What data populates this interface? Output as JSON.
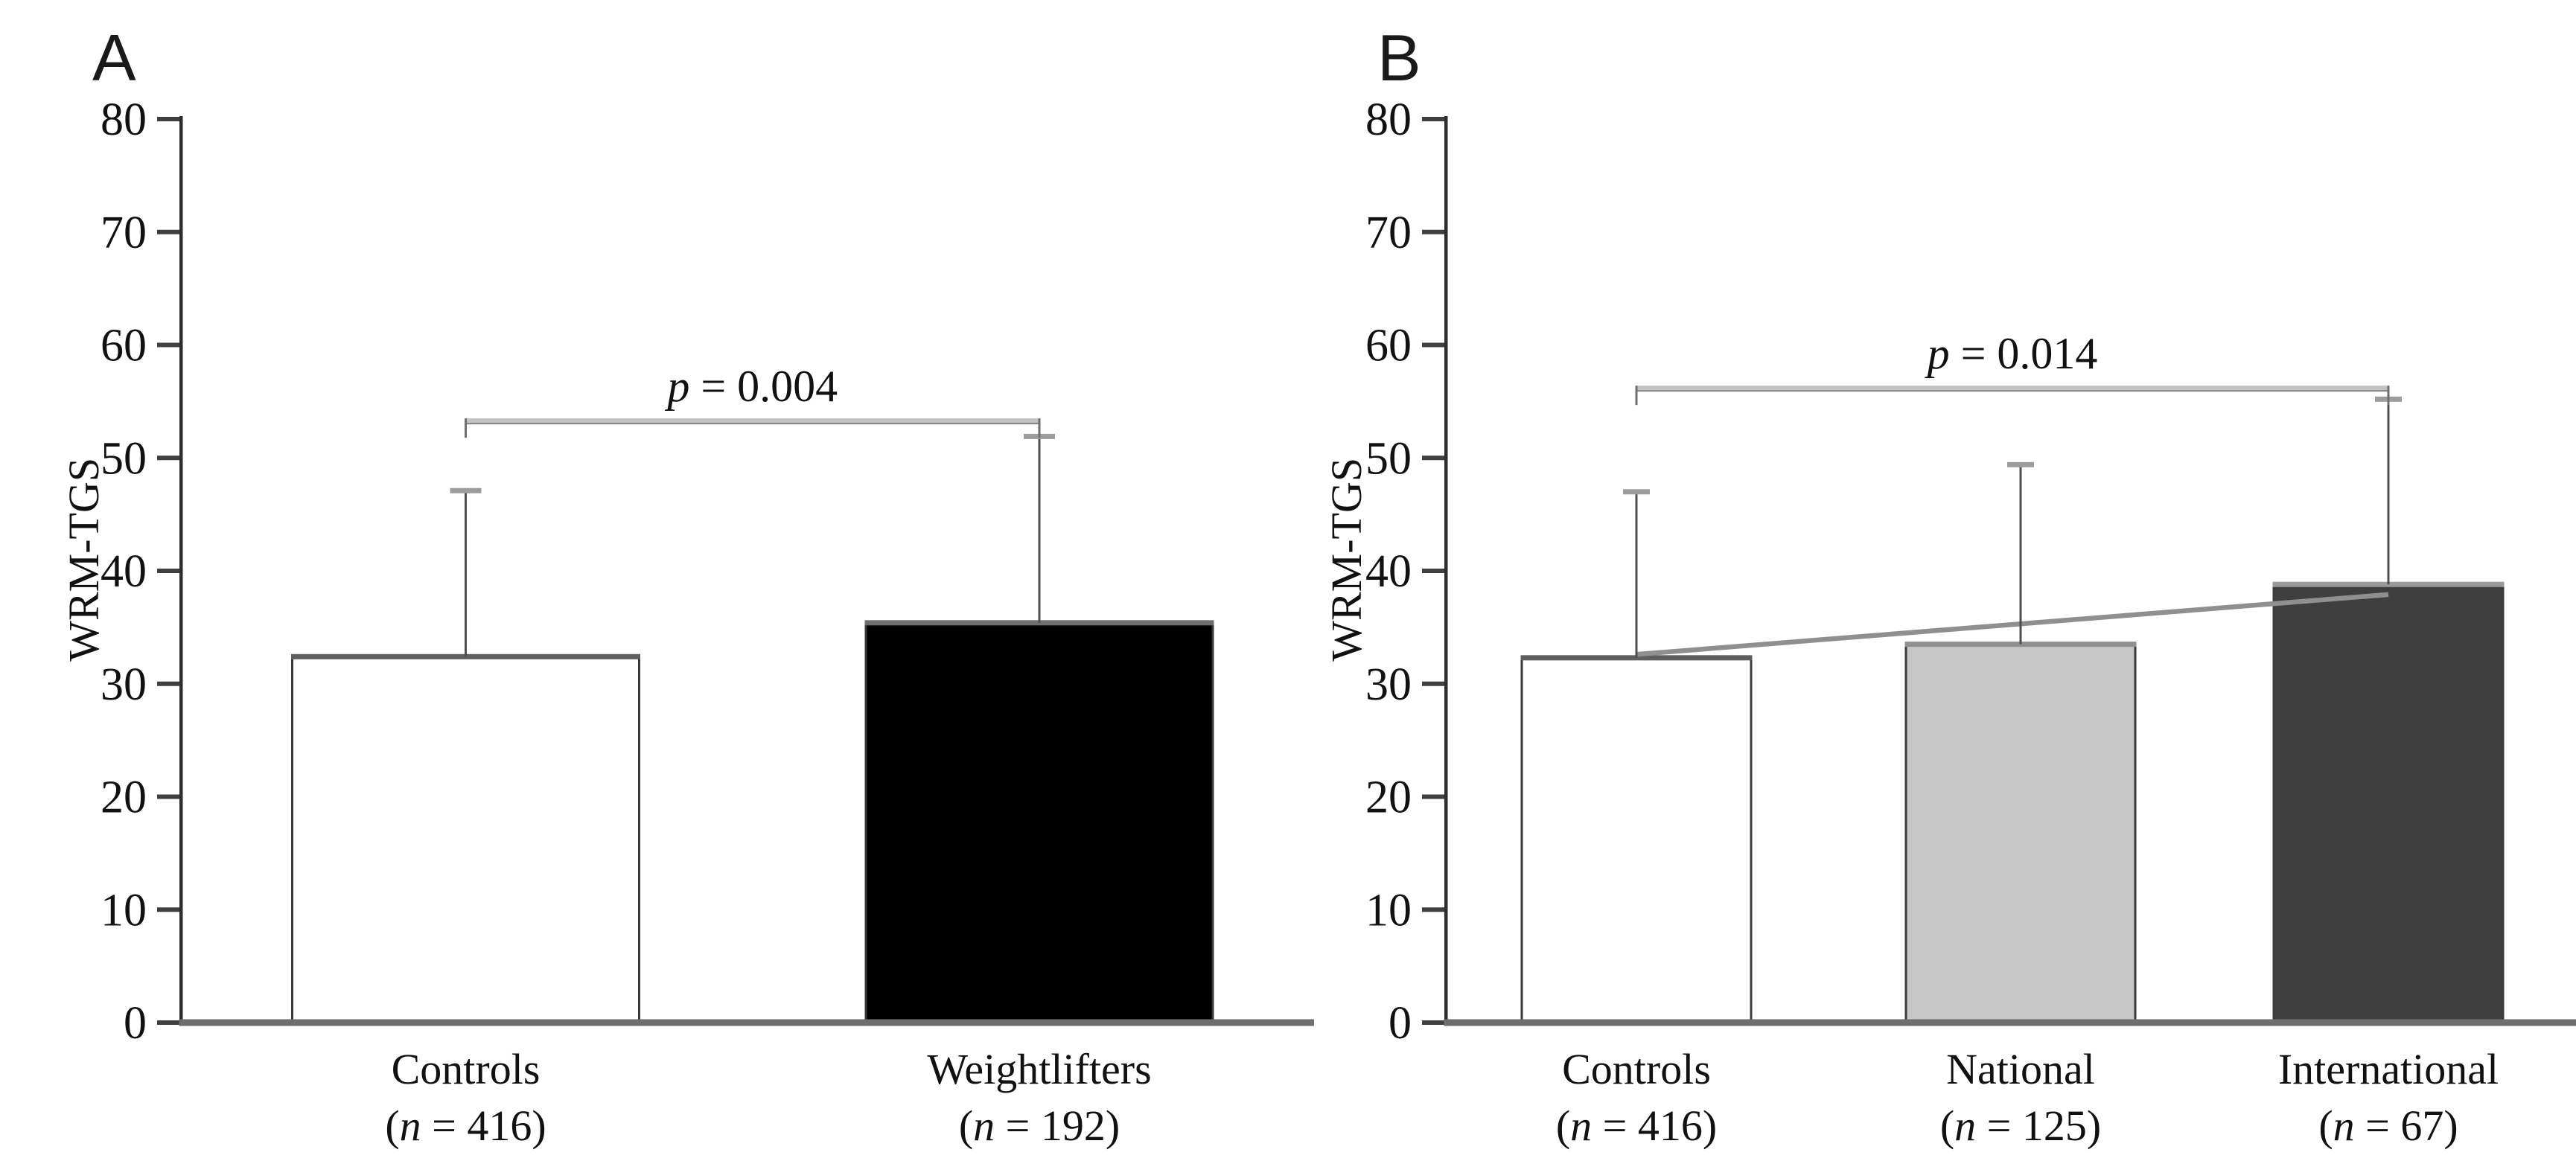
{
  "page": {
    "background": "#ffffff",
    "description_visible_text_only": true
  },
  "colors": {
    "text": "#111111",
    "panel_letter": "#1a1a1a",
    "y_axis_line": "#2e2e2e",
    "tick_mark": "#3f3f3f",
    "x_baseline": "#6e6e6e",
    "bar_border": "#3a3a3a",
    "error_line": "#4f4f4f",
    "error_cap": "#9c9c9c",
    "bracket_main": "#c2c2c2",
    "bracket_shadow": "#7f7f7f",
    "bracket_stem": "#6f6f6f",
    "trend_line": "#8f8f8f"
  },
  "chart_data": [
    {
      "type": "bar",
      "panel_label": "A",
      "title": "",
      "xlabel": "",
      "ylabel": "WRM-TGS",
      "ylim": [
        0,
        80
      ],
      "yticks": [
        0,
        10,
        20,
        30,
        40,
        50,
        60,
        70,
        80
      ],
      "grid": false,
      "legend": "none",
      "categories": [
        {
          "label": "Controls",
          "sub_pre": "(",
          "sub_italic": "n",
          "sub_post": " = 416)"
        },
        {
          "label": "Weightlifters",
          "sub_pre": "(",
          "sub_italic": "n",
          "sub_post": " = 192)"
        }
      ],
      "values": [
        32.4,
        35.4
      ],
      "error_top_values": [
        47.1,
        51.9
      ],
      "bar_fills": [
        "#ffffff",
        "#000000"
      ],
      "bar_top_edges": [
        "#5f5f5f",
        "#6f6f6f"
      ],
      "significance": {
        "italic": "p",
        "rest": " = 0.004",
        "from_index": 0,
        "to_index": 1,
        "bracket_value": 53.3
      }
    },
    {
      "type": "bar",
      "panel_label": "B",
      "title": "",
      "xlabel": "",
      "ylabel": "WRM-TGS",
      "ylim": [
        0,
        80
      ],
      "yticks": [
        0,
        10,
        20,
        30,
        40,
        50,
        60,
        70,
        80
      ],
      "grid": false,
      "legend": "none",
      "categories": [
        {
          "label": "Controls",
          "sub_pre": "(",
          "sub_italic": "n",
          "sub_post": " = 416)"
        },
        {
          "label": "National",
          "sub_pre": "(",
          "sub_italic": "n",
          "sub_post": " = 125)"
        },
        {
          "label": "International",
          "sub_pre": "(",
          "sub_italic": "n",
          "sub_post": " = 67)"
        }
      ],
      "values": [
        32.3,
        33.5,
        38.8
      ],
      "error_top_values": [
        47.0,
        49.4,
        55.2
      ],
      "bar_fills": [
        "#ffffff",
        "#c6c6c6",
        "#3f3f3f"
      ],
      "bar_top_edges": [
        "#5f5f5f",
        "#8f8f8f",
        "#9a9a9a"
      ],
      "significance": {
        "italic": "p",
        "rest": " = 0.014",
        "from_index": 0,
        "to_index": 2,
        "bracket_value": 56.2
      },
      "trend_line": {
        "from_index": 0,
        "from_value": 32.6,
        "to_index": 2,
        "to_value": 37.9
      }
    }
  ]
}
